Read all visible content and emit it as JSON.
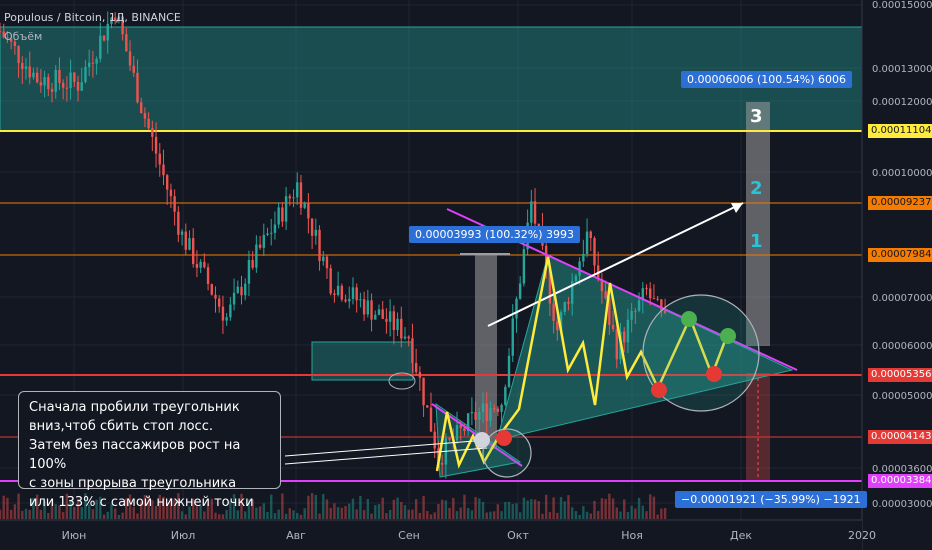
{
  "header": {
    "symbol_line": "Populous / Bitcoin, 1Д, BINANCE",
    "volume_label": "Объём"
  },
  "annotations": {
    "callout_text": "Сначала пробили треугольник\nвниз,чтоб сбить стоп лосс.\nЗатем без пассажиров рост на 100%\nс зоны прорыва треугольника\nили 133% с самой нижней точки",
    "measure_1": "0.00003993 (100.32%) 3993",
    "measure_2": "0.00006006 (100.54%) 6006",
    "measure_3": "−0.00001921 (−35.99%) −1921",
    "targets": [
      "1",
      "2",
      "3"
    ]
  },
  "price_axis": {
    "ticks": [
      "0.00015000",
      "0.00013000",
      "0.00012000",
      "0.00010000",
      "0.00007000",
      "0.00006000",
      "0.00005000",
      "0.00003600",
      "0.00003000"
    ],
    "tags": [
      {
        "label": "0.00011104",
        "color": "#ffeb3b",
        "text_color": "#131722"
      },
      {
        "label": "0.00009237",
        "color": "#f57c00",
        "text_color": "#131722"
      },
      {
        "label": "0.00007984",
        "color": "#f57c00",
        "text_color": "#131722"
      },
      {
        "label": "0.00005356",
        "color": "#e53935",
        "text_color": "#ffffff"
      },
      {
        "label": "0.00004143",
        "color": "#e53935",
        "text_color": "#ffffff"
      },
      {
        "label": "0.00003384",
        "color": "#e040fb",
        "text_color": "#ffffff"
      }
    ]
  },
  "time_axis": {
    "ticks": [
      "Июн",
      "Июл",
      "Авг",
      "Сен",
      "Окт",
      "Ноя",
      "Дек",
      "2020"
    ]
  },
  "colors": {
    "background": "#131722",
    "candle_up": "#26a69a",
    "candle_down": "#ef5350",
    "zone": "#26a69a",
    "yellow_line": "#ffeb3b",
    "magenta": "#e040fb"
  },
  "chart_data": {
    "type": "candlestick",
    "title": "Populous / Bitcoin, 1Д, BINANCE",
    "y_scale": "log",
    "ylim": [
      2.85e-05,
      0.000155
    ],
    "x_range": [
      "2019-05-15",
      "2020-01-02"
    ],
    "horizontal_levels": [
      0.00011104,
      9.237e-05,
      7.984e-05,
      5.356e-05,
      4.143e-05,
      3.384e-05
    ],
    "price_path_keypoints": [
      {
        "date": "2019-05-15",
        "price": 0.00014
      },
      {
        "date": "2019-05-25",
        "price": 0.00012
      },
      {
        "date": "2019-06-05",
        "price": 0.000118
      },
      {
        "date": "2019-06-15",
        "price": 0.00015
      },
      {
        "date": "2019-06-22",
        "price": 0.00011
      },
      {
        "date": "2019-07-03",
        "price": 7.2e-05
      },
      {
        "date": "2019-07-15",
        "price": 5.5e-05
      },
      {
        "date": "2019-07-22",
        "price": 6.6e-05
      },
      {
        "date": "2019-08-03",
        "price": 8.5e-05
      },
      {
        "date": "2019-08-12",
        "price": 6.2e-05
      },
      {
        "date": "2019-08-22",
        "price": 5.7e-05
      },
      {
        "date": "2019-09-02",
        "price": 5.2e-05
      },
      {
        "date": "2019-09-10",
        "price": 3.5e-05
      },
      {
        "date": "2019-09-20",
        "price": 4e-05
      },
      {
        "date": "2019-09-27",
        "price": 4.2e-05
      },
      {
        "date": "2019-10-05",
        "price": 8e-05
      },
      {
        "date": "2019-10-12",
        "price": 5.3e-05
      },
      {
        "date": "2019-10-20",
        "price": 7.2e-05
      },
      {
        "date": "2019-10-28",
        "price": 5e-05
      },
      {
        "date": "2019-11-05",
        "price": 6e-05
      },
      {
        "date": "2019-11-10",
        "price": 5.4e-05
      }
    ]
  }
}
